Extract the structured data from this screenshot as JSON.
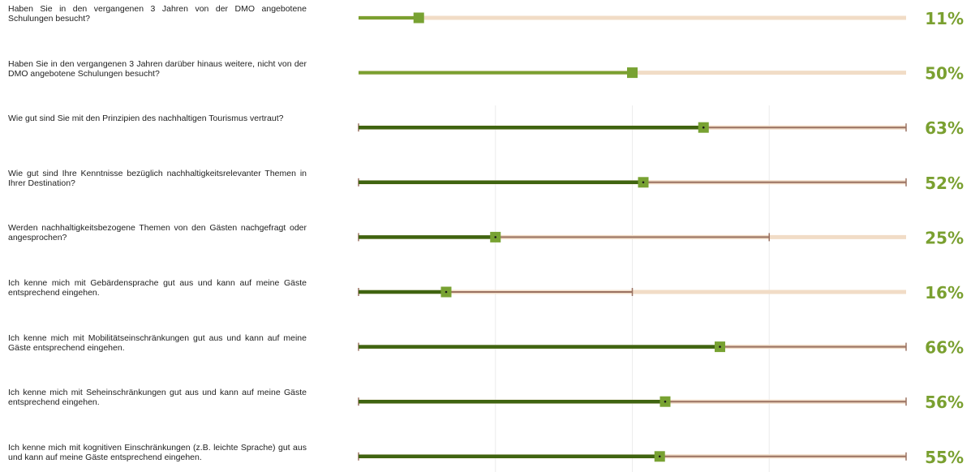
{
  "chart_data": {
    "type": "bar",
    "xlim": [
      0,
      100
    ],
    "gridlines": [
      25,
      50,
      75
    ],
    "colors": {
      "primary_bar": "#7aa030",
      "dark_bar": "#3f6410",
      "marker": "#78a232",
      "range_line": "#9a7262",
      "track": "#f1dcc6",
      "gridline": "#ececec",
      "percent_text": "#7aa030"
    },
    "rows": [
      {
        "question": "Haben Sie in den vergangenen 3 Jahren von der DMO angebotene Schulungen besucht?",
        "value": 11,
        "label": "11%",
        "style": "simple"
      },
      {
        "question": "Haben Sie in den vergangenen 3 Jahren darüber hinaus weitere, nicht von der DMO angebotene Schulungen besucht?",
        "value": 50,
        "label": "50%",
        "style": "simple"
      },
      {
        "question": "Wie gut sind Sie mit den Prinzipien des nachhaltigen Tourismus vertraut?",
        "value": 63,
        "label": "63%",
        "style": "range",
        "range": [
          0,
          100
        ]
      },
      {
        "question": "Wie gut sind Ihre Kenntnisse bezüglich nachhaltigkeitsrelevanter Themen in Ihrer Destination?",
        "value": 52,
        "label": "52%",
        "style": "range",
        "range": [
          0,
          100
        ]
      },
      {
        "question": "Werden nachhaltigkeitsbezogene Themen von den Gästen nachgefragt oder angesprochen?",
        "value": 25,
        "label": "25%",
        "style": "range",
        "range": [
          0,
          75
        ]
      },
      {
        "question": "Ich kenne mich mit Gebärdensprache gut aus und kann auf meine Gäste entsprechend eingehen.",
        "value": 16,
        "label": "16%",
        "style": "range",
        "range": [
          0,
          50
        ]
      },
      {
        "question": "Ich kenne mich mit Mobilitätseinschränkungen gut aus und kann auf meine Gäste entsprechend eingehen.",
        "value": 66,
        "label": "66%",
        "style": "range",
        "range": [
          0,
          100
        ]
      },
      {
        "question": "Ich kenne mich mit Seheinschränkungen gut aus und kann auf meine Gäste entsprechend eingehen.",
        "value": 56,
        "label": "56%",
        "style": "range",
        "range": [
          0,
          100
        ]
      },
      {
        "question": "Ich kenne mich mit kognitiven Einschränkungen (z.B. leichte Sprache) gut aus und kann auf meine Gäste entsprechend eingehen.",
        "value": 55,
        "label": "55%",
        "style": "range",
        "range": [
          0,
          100
        ]
      }
    ]
  }
}
